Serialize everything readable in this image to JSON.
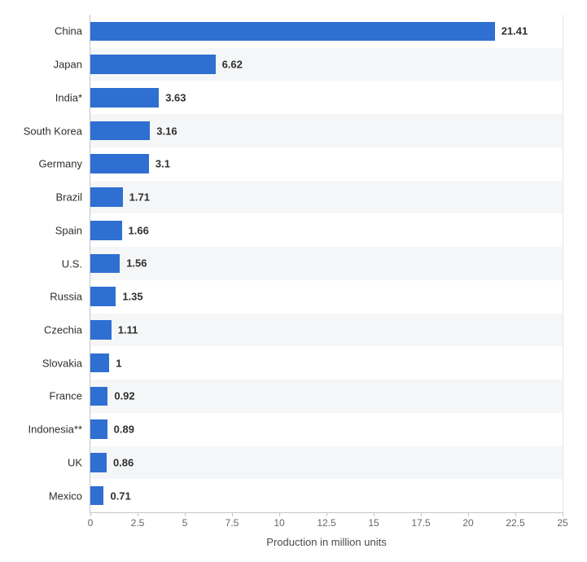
{
  "chart": {
    "type": "bar-horizontal",
    "x_title": "Production in million units",
    "x_min": 0,
    "x_max": 25,
    "x_tick_step": 2.5,
    "x_tick_labels": [
      "0",
      "2.5",
      "5",
      "7.5",
      "10",
      "12.5",
      "15",
      "17.5",
      "20",
      "22.5",
      "25"
    ],
    "bar_color": "#2f6fd1",
    "band_alt_color": "#f5f6f7",
    "background_color": "#ffffff",
    "axis_color": "#bfc6cc",
    "grid_color": "#e3e6e8",
    "label_fontsize": 13,
    "tick_fontsize": 12,
    "value_label_fontweight": "bold",
    "data": [
      {
        "label": "China",
        "value": 21.41,
        "vlabel": "21.41"
      },
      {
        "label": "Japan",
        "value": 6.62,
        "vlabel": "6.62"
      },
      {
        "label": "India*",
        "value": 3.63,
        "vlabel": "3.63"
      },
      {
        "label": "South Korea",
        "value": 3.16,
        "vlabel": "3.16"
      },
      {
        "label": "Germany",
        "value": 3.1,
        "vlabel": "3.1"
      },
      {
        "label": "Brazil",
        "value": 1.71,
        "vlabel": "1.71"
      },
      {
        "label": "Spain",
        "value": 1.66,
        "vlabel": "1.66"
      },
      {
        "label": "U.S.",
        "value": 1.56,
        "vlabel": "1.56"
      },
      {
        "label": "Russia",
        "value": 1.35,
        "vlabel": "1.35"
      },
      {
        "label": "Czechia",
        "value": 1.11,
        "vlabel": "1.11"
      },
      {
        "label": "Slovakia",
        "value": 1,
        "vlabel": "1"
      },
      {
        "label": "France",
        "value": 0.92,
        "vlabel": "0.92"
      },
      {
        "label": "Indonesia**",
        "value": 0.89,
        "vlabel": "0.89"
      },
      {
        "label": "UK",
        "value": 0.86,
        "vlabel": "0.86"
      },
      {
        "label": "Mexico",
        "value": 0.71,
        "vlabel": "0.71"
      }
    ]
  }
}
